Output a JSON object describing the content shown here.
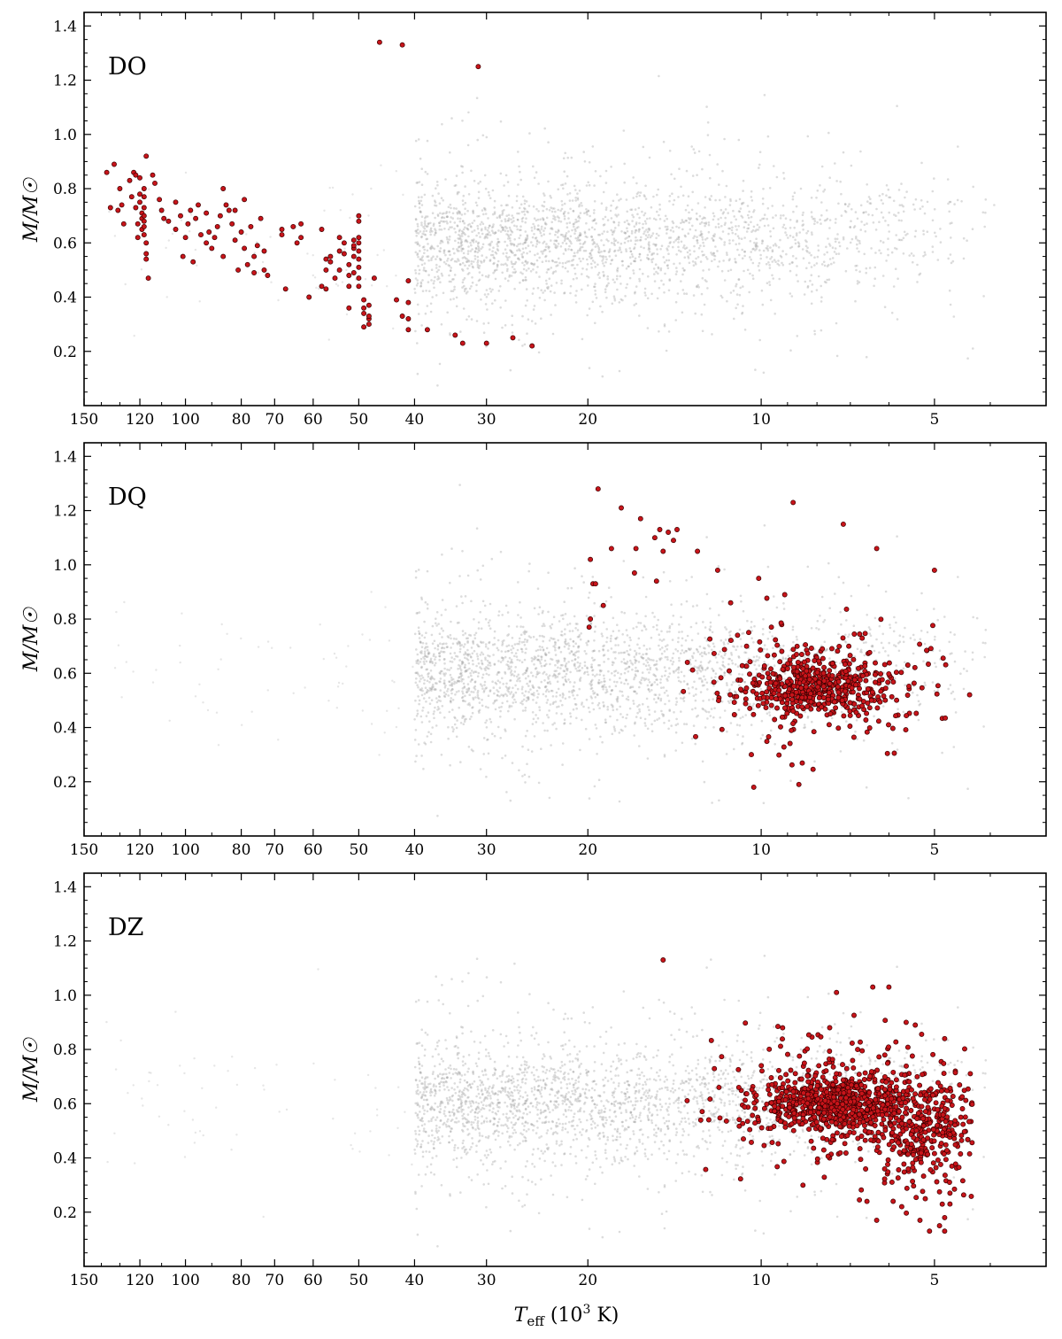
{
  "figure": {
    "ylabel": "M/M☉",
    "xlabel_main": "T",
    "xlabel_sub": "eff",
    "xlabel_rest": " (10",
    "xlabel_sup": "3",
    "xlabel_tail": " K)"
  },
  "chart_data": [
    {
      "type": "scatter",
      "panel_label": "DO",
      "x_scale": "log",
      "x_reversed": true,
      "xlim": [
        150,
        3.2
      ],
      "ylim": [
        0.0,
        1.45
      ],
      "xticks": [
        150,
        120,
        100,
        80,
        70,
        60,
        50,
        40,
        30,
        20,
        10,
        5
      ],
      "yticks": [
        0.2,
        0.4,
        0.6,
        0.8,
        1.0,
        1.2,
        1.4
      ],
      "background_sample": {
        "description": "full white dwarf sample",
        "color": "#9a9a9a",
        "ridge_mass": 0.6,
        "teff_range": [
          45,
          3.8
        ]
      },
      "highlight_color": "#c8141a",
      "points": [
        [
          137,
          0.86
        ],
        [
          135,
          0.73
        ],
        [
          133,
          0.89
        ],
        [
          131,
          0.72
        ],
        [
          130,
          0.8
        ],
        [
          129,
          0.74
        ],
        [
          128,
          0.67
        ],
        [
          125,
          0.83
        ],
        [
          124,
          0.77
        ],
        [
          123,
          0.86
        ],
        [
          122,
          0.85
        ],
        [
          122,
          0.73
        ],
        [
          121,
          0.67
        ],
        [
          121,
          0.62
        ],
        [
          120,
          0.84
        ],
        [
          120,
          0.78
        ],
        [
          120,
          0.75
        ],
        [
          119,
          0.71
        ],
        [
          119,
          0.69
        ],
        [
          119,
          0.65
        ],
        [
          118,
          0.8
        ],
        [
          118,
          0.77
        ],
        [
          118,
          0.73
        ],
        [
          118,
          0.7
        ],
        [
          118,
          0.68
        ],
        [
          118,
          0.66
        ],
        [
          118,
          0.63
        ],
        [
          117,
          0.56
        ],
        [
          117,
          0.54
        ],
        [
          117,
          0.6
        ],
        [
          117,
          0.92
        ],
        [
          116,
          0.47
        ],
        [
          114,
          0.85
        ],
        [
          113,
          0.82
        ],
        [
          111,
          0.76
        ],
        [
          110,
          0.72
        ],
        [
          109,
          0.69
        ],
        [
          107,
          0.68
        ],
        [
          104,
          0.75
        ],
        [
          104,
          0.65
        ],
        [
          102,
          0.7
        ],
        [
          101,
          0.55
        ],
        [
          100,
          0.62
        ],
        [
          99,
          0.67
        ],
        [
          98,
          0.72
        ],
        [
          97,
          0.53
        ],
        [
          96,
          0.69
        ],
        [
          95,
          0.74
        ],
        [
          94,
          0.63
        ],
        [
          92,
          0.71
        ],
        [
          92,
          0.6
        ],
        [
          91,
          0.64
        ],
        [
          90,
          0.58
        ],
        [
          89,
          0.62
        ],
        [
          88,
          0.66
        ],
        [
          87,
          0.7
        ],
        [
          86,
          0.8
        ],
        [
          86,
          0.55
        ],
        [
          85,
          0.74
        ],
        [
          84,
          0.72
        ],
        [
          83,
          0.67
        ],
        [
          82,
          0.72
        ],
        [
          82,
          0.61
        ],
        [
          81,
          0.5
        ],
        [
          80,
          0.64
        ],
        [
          79,
          0.58
        ],
        [
          79,
          0.76
        ],
        [
          78,
          0.52
        ],
        [
          77,
          0.66
        ],
        [
          76,
          0.55
        ],
        [
          76,
          0.49
        ],
        [
          75,
          0.59
        ],
        [
          74,
          0.69
        ],
        [
          73,
          0.57
        ],
        [
          73,
          0.5
        ],
        [
          72,
          0.48
        ],
        [
          68,
          0.63
        ],
        [
          68,
          0.65
        ],
        [
          67,
          0.43
        ],
        [
          65,
          0.66
        ],
        [
          64,
          0.6
        ],
        [
          63,
          0.67
        ],
        [
          63,
          0.62
        ],
        [
          61,
          0.4
        ],
        [
          58,
          0.65
        ],
        [
          58,
          0.44
        ],
        [
          57,
          0.54
        ],
        [
          57,
          0.5
        ],
        [
          57,
          0.43
        ],
        [
          56,
          0.53
        ],
        [
          56,
          0.55
        ],
        [
          55,
          0.47
        ],
        [
          54,
          0.5
        ],
        [
          54,
          0.57
        ],
        [
          54,
          0.62
        ],
        [
          53,
          0.6
        ],
        [
          53,
          0.56
        ],
        [
          52,
          0.44
        ],
        [
          52,
          0.48
        ],
        [
          52,
          0.52
        ],
        [
          52,
          0.36
        ],
        [
          51,
          0.58
        ],
        [
          51,
          0.61
        ],
        [
          51,
          0.59
        ],
        [
          51,
          0.55
        ],
        [
          51,
          0.49
        ],
        [
          50,
          0.7
        ],
        [
          50,
          0.68
        ],
        [
          50,
          0.62
        ],
        [
          50,
          0.6
        ],
        [
          50,
          0.57
        ],
        [
          50,
          0.54
        ],
        [
          50,
          0.51
        ],
        [
          50,
          0.47
        ],
        [
          50,
          0.44
        ],
        [
          49,
          0.36
        ],
        [
          49,
          0.34
        ],
        [
          49,
          0.29
        ],
        [
          49,
          0.39
        ],
        [
          48,
          0.32
        ],
        [
          48,
          0.3
        ],
        [
          48,
          0.37
        ],
        [
          48,
          0.33
        ],
        [
          47,
          0.47
        ],
        [
          46,
          1.34
        ],
        [
          42,
          1.33
        ],
        [
          43,
          0.39
        ],
        [
          42,
          0.33
        ],
        [
          41,
          0.46
        ],
        [
          41,
          0.38
        ],
        [
          41,
          0.32
        ],
        [
          41,
          0.28
        ],
        [
          38,
          0.28
        ],
        [
          34,
          0.26
        ],
        [
          33,
          0.23
        ],
        [
          30,
          0.23
        ],
        [
          27,
          0.25
        ],
        [
          25,
          0.22
        ],
        [
          31,
          1.25
        ]
      ]
    },
    {
      "type": "scatter",
      "panel_label": "DQ",
      "x_scale": "log",
      "x_reversed": true,
      "xlim": [
        150,
        3.2
      ],
      "ylim": [
        0.0,
        1.45
      ],
      "xticks": [
        150,
        120,
        100,
        80,
        70,
        60,
        50,
        40,
        30,
        20,
        10,
        5
      ],
      "yticks": [
        0.2,
        0.4,
        0.6,
        0.8,
        1.0,
        1.2,
        1.4
      ],
      "background_sample": {
        "description": "full white dwarf sample",
        "color": "#9a9a9a",
        "ridge_mass": 0.6,
        "teff_range": [
          45,
          3.8
        ]
      },
      "highlight_color": "#c8141a",
      "points": [
        [
          19.2,
          1.28
        ],
        [
          17.5,
          1.21
        ],
        [
          16.2,
          1.17
        ],
        [
          15.0,
          1.13
        ],
        [
          14.5,
          1.12
        ],
        [
          14.2,
          1.09
        ],
        [
          14.0,
          1.13
        ],
        [
          15.3,
          1.1
        ],
        [
          14.8,
          1.05
        ],
        [
          16.5,
          1.06
        ],
        [
          18.2,
          1.06
        ],
        [
          19.8,
          1.02
        ],
        [
          19.6,
          0.93
        ],
        [
          19.4,
          0.93
        ],
        [
          19.8,
          0.8
        ],
        [
          19.9,
          0.77
        ],
        [
          18.8,
          0.85
        ],
        [
          16.6,
          0.97
        ],
        [
          15.2,
          0.94
        ],
        [
          12.9,
          1.05
        ],
        [
          11.9,
          0.98
        ],
        [
          10.1,
          0.95
        ],
        [
          8.8,
          1.23
        ],
        [
          7.2,
          1.15
        ],
        [
          6.3,
          1.06
        ],
        [
          5.0,
          0.98
        ],
        [
          11.3,
          0.86
        ],
        [
          9.6,
          0.77
        ],
        [
          9.1,
          0.89
        ],
        [
          10.6,
          0.7
        ],
        [
          10.4,
          0.3
        ],
        [
          10.3,
          0.18
        ],
        [
          8.6,
          0.19
        ]
      ],
      "dense_cluster": {
        "center_teff": 8.0,
        "center_mass": 0.55,
        "count_estimate": 600
      }
    },
    {
      "type": "scatter",
      "panel_label": "DZ",
      "x_scale": "log",
      "x_reversed": true,
      "xlim": [
        150,
        3.2
      ],
      "ylim": [
        0.0,
        1.45
      ],
      "xticks": [
        150,
        120,
        100,
        80,
        70,
        60,
        50,
        40,
        30,
        20,
        10,
        5
      ],
      "yticks": [
        0.2,
        0.4,
        0.6,
        0.8,
        1.0,
        1.2,
        1.4
      ],
      "background_sample": {
        "description": "full white dwarf sample",
        "color": "#9a9a9a",
        "ridge_mass": 0.6,
        "teff_range": [
          45,
          3.8
        ]
      },
      "highlight_color": "#c8141a",
      "points": [
        [
          14.8,
          1.13
        ],
        [
          7.4,
          1.01
        ],
        [
          6.4,
          1.03
        ],
        [
          6.0,
          1.03
        ],
        [
          5.6,
          0.9
        ],
        [
          5.4,
          0.89
        ],
        [
          4.8,
          0.84
        ],
        [
          4.6,
          0.72
        ],
        [
          4.5,
          0.62
        ],
        [
          4.5,
          0.55
        ],
        [
          4.7,
          0.27
        ],
        [
          4.9,
          0.15
        ],
        [
          4.8,
          0.13
        ],
        [
          5.1,
          0.13
        ],
        [
          5.3,
          0.17
        ],
        [
          5.7,
          0.22
        ],
        [
          5.9,
          0.24
        ],
        [
          6.3,
          0.17
        ],
        [
          4.7,
          0.23
        ],
        [
          4.8,
          0.18
        ]
      ],
      "dense_cluster": {
        "center_teff": 7.5,
        "center_mass": 0.6,
        "count_estimate": 1200
      }
    }
  ]
}
